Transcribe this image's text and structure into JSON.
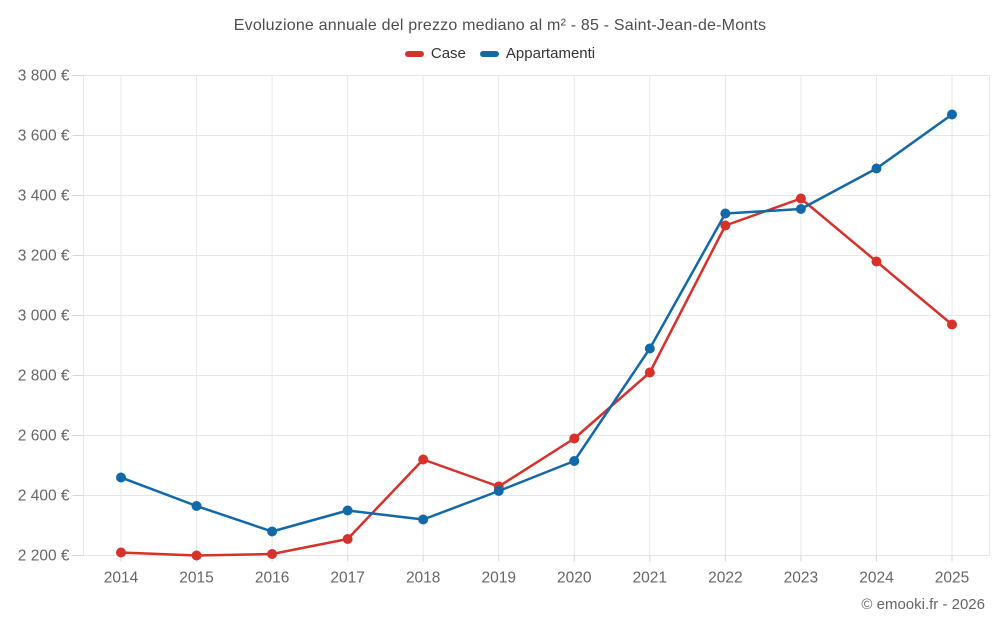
{
  "title": "Evoluzione annuale del prezzo mediano al m² - 85 - Saint-Jean-de-Monts",
  "footer": "© emooki.fr - 2026",
  "legend": [
    {
      "label": "Case",
      "color": "#d7312c"
    },
    {
      "label": "Appartamenti",
      "color": "#1269a8"
    }
  ],
  "chart_data": {
    "type": "line",
    "title": "Evoluzione annuale del prezzo mediano al m² - 85 - Saint-Jean-de-Monts",
    "x": [
      2014,
      2015,
      2016,
      2017,
      2018,
      2019,
      2020,
      2021,
      2022,
      2023,
      2024,
      2025
    ],
    "series": [
      {
        "name": "Case",
        "color": "#d7312c",
        "values": [
          2210,
          2200,
          2205,
          2255,
          2520,
          2430,
          2590,
          2810,
          3300,
          3390,
          3180,
          2970
        ]
      },
      {
        "name": "Appartamenti",
        "color": "#1269a8",
        "values": [
          2460,
          2365,
          2280,
          2350,
          2320,
          2415,
          2515,
          2890,
          3340,
          3355,
          3490,
          3670
        ]
      }
    ],
    "ylim": [
      2200,
      3800
    ],
    "ytick_step": 200,
    "ytick_format": "{thousands separated by space} €",
    "ytick_labels": [
      "2 200 €",
      "2 400 €",
      "2 600 €",
      "2 800 €",
      "3 000 €",
      "3 200 €",
      "3 400 €",
      "3 600 €",
      "3 800 €"
    ],
    "xlabel": "",
    "ylabel": "",
    "grid": true,
    "legend_position": "top",
    "marker": "circle"
  },
  "colors": {
    "background": "#ffffff",
    "grid": "#e7e7e7",
    "tick": "#d6d6d6",
    "axis_text": "#666666",
    "title_text": "#4d4d4d",
    "legend_text": "#333333"
  }
}
